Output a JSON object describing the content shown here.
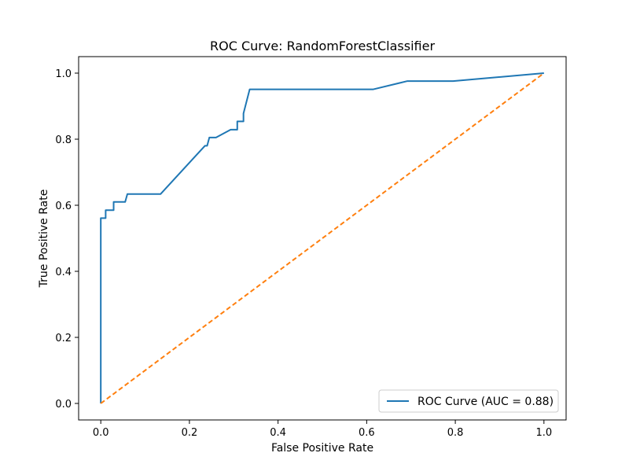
{
  "chart_data": {
    "type": "line",
    "title": "ROC Curve: RandomForestClassifier",
    "xlabel": "False Positive Rate",
    "ylabel": "True Positive Rate",
    "xlim": [
      -0.05,
      1.05
    ],
    "ylim": [
      -0.05,
      1.05
    ],
    "xticks": [
      0.0,
      0.2,
      0.4,
      0.6,
      0.8,
      1.0
    ],
    "yticks": [
      0.0,
      0.2,
      0.4,
      0.6,
      0.8,
      1.0
    ],
    "xtick_labels": [
      "0.0",
      "0.2",
      "0.4",
      "0.6",
      "0.8",
      "1.0"
    ],
    "ytick_labels": [
      "0.0",
      "0.2",
      "0.4",
      "0.6",
      "0.8",
      "1.0"
    ],
    "grid": false,
    "legend_position": "lower-right",
    "series": [
      {
        "name": "ROC Curve (AUC = 0.88)",
        "color": "#1f77b4",
        "style": "solid",
        "x": [
          0.0,
          0.0,
          0.002,
          0.002,
          0.011,
          0.011,
          0.029,
          0.029,
          0.055,
          0.06,
          0.135,
          0.235,
          0.24,
          0.245,
          0.26,
          0.293,
          0.308,
          0.308,
          0.322,
          0.322,
          0.336,
          0.38,
          0.615,
          0.692,
          0.795,
          1.0
        ],
        "y": [
          0.0,
          0.561,
          0.561,
          0.561,
          0.561,
          0.585,
          0.585,
          0.61,
          0.61,
          0.634,
          0.634,
          0.78,
          0.78,
          0.805,
          0.805,
          0.829,
          0.829,
          0.854,
          0.854,
          0.878,
          0.951,
          0.951,
          0.951,
          0.976,
          0.976,
          1.0
        ]
      },
      {
        "name": "",
        "color": "#ff7f0e",
        "style": "dashed",
        "x": [
          0.0,
          1.0
        ],
        "y": [
          0.0,
          1.0
        ]
      }
    ]
  }
}
